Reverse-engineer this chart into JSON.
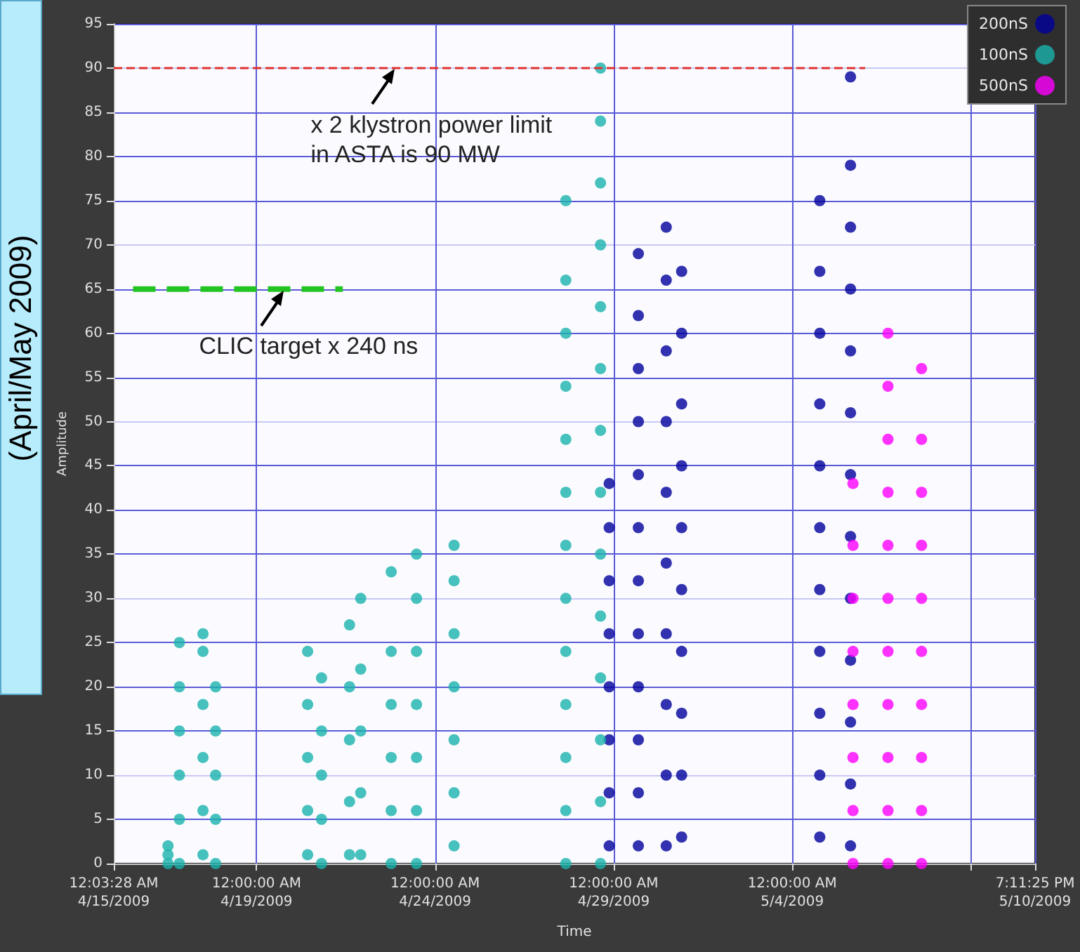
{
  "chart_data": {
    "type": "scatter",
    "xlabel": "Time",
    "ylabel": "Amplitude",
    "annotations": [
      {
        "text": "x 2 klystron power limit\nin ASTA is 90 MW",
        "x": "2009-04-22T21:00",
        "y": 90
      },
      {
        "text": "CLIC target x 240 ns",
        "x": "2009-04-19T18:00",
        "y": 65
      },
      "(April/May 2009)"
    ],
    "xlim": [
      "2009-04-15T00:03",
      "2009-05-10T19:11"
    ],
    "xticks": [
      {
        "value": "2009-04-15T00:03",
        "label": "12:03:28 AM\n4/15/2009"
      },
      {
        "value": "2009-04-19T00:00",
        "label": "12:00:00 AM\n4/19/2009"
      },
      {
        "value": "2009-04-24T00:00",
        "label": "12:00:00 AM\n4/24/2009"
      },
      {
        "value": "2009-04-29T00:00",
        "label": "12:00:00 AM\n4/29/2009"
      },
      {
        "value": "2009-05-04T00:00",
        "label": "12:00:00 AM\n5/4/2009"
      },
      {
        "value": "2009-05-09T00:00",
        "label": null
      },
      {
        "value": "2009-05-10T19:11",
        "label": "7:11:25 PM\n5/10/2009"
      }
    ],
    "ylim": [
      0,
      95
    ],
    "yticks": [
      0,
      5,
      10,
      15,
      20,
      25,
      30,
      35,
      40,
      45,
      50,
      55,
      60,
      65,
      70,
      75,
      80,
      85,
      90,
      95
    ],
    "grid": true,
    "legend": "top right",
    "marker": "circle",
    "series": [
      {
        "name": "200nS",
        "color": "#00009c",
        "x": [
          "2009-04-28T21:00",
          "2009-04-28T21:00",
          "2009-04-28T21:00",
          "2009-04-28T21:00",
          "2009-04-28T21:00",
          "2009-04-28T21:00",
          "2009-04-28T21:00",
          "2009-04-28T21:00",
          "2009-04-29T16:35",
          "2009-04-29T16:35",
          "2009-04-29T16:35",
          "2009-04-29T16:35",
          "2009-04-29T16:35",
          "2009-04-29T16:35",
          "2009-04-29T16:35",
          "2009-04-29T16:35",
          "2009-04-29T16:35",
          "2009-04-29T16:35",
          "2009-04-29T16:35",
          "2009-04-29T16:35",
          "2009-04-30T11:20",
          "2009-04-30T11:20",
          "2009-04-30T11:20",
          "2009-04-30T11:20",
          "2009-04-30T11:20",
          "2009-04-30T11:20",
          "2009-04-30T11:20",
          "2009-04-30T11:20",
          "2009-04-30T11:20",
          "2009-04-30T11:20",
          "2009-04-30T21:40",
          "2009-04-30T21:40",
          "2009-04-30T21:40",
          "2009-04-30T21:40",
          "2009-04-30T21:40",
          "2009-04-30T21:40",
          "2009-04-30T21:40",
          "2009-04-30T21:40",
          "2009-04-30T21:40",
          "2009-04-30T21:40",
          "2009-05-04T18:30",
          "2009-05-04T18:30",
          "2009-05-04T18:30",
          "2009-05-04T18:30",
          "2009-05-04T18:30",
          "2009-05-04T18:30",
          "2009-05-04T18:30",
          "2009-05-04T18:30",
          "2009-05-04T18:30",
          "2009-05-04T18:30",
          "2009-05-04T18:30",
          "2009-05-05T15:10",
          "2009-05-05T15:10",
          "2009-05-05T15:10",
          "2009-05-05T15:10",
          "2009-05-05T15:10",
          "2009-05-05T15:10",
          "2009-05-05T15:10",
          "2009-05-05T15:10",
          "2009-05-05T15:10",
          "2009-05-05T15:10",
          "2009-05-05T15:10",
          "2009-05-05T15:10",
          "2009-05-05T15:10"
        ],
        "values": [
          2,
          8,
          14,
          20,
          26,
          32,
          38,
          43,
          2,
          8,
          14,
          20,
          26,
          32,
          38,
          44,
          50,
          56,
          62,
          69,
          2,
          10,
          18,
          26,
          34,
          42,
          50,
          58,
          66,
          72,
          3,
          10,
          17,
          24,
          31,
          38,
          45,
          52,
          60,
          67,
          3,
          10,
          17,
          24,
          31,
          38,
          45,
          52,
          60,
          67,
          75,
          2,
          9,
          16,
          23,
          30,
          37,
          44,
          51,
          58,
          65,
          72,
          79,
          89
        ]
      },
      {
        "name": "100nS",
        "color": "#1ab3ad",
        "x": [
          "2009-04-16T12:30",
          "2009-04-16T12:30",
          "2009-04-16T12:30",
          "2009-04-16T20:10",
          "2009-04-16T20:10",
          "2009-04-16T20:10",
          "2009-04-16T20:10",
          "2009-04-16T20:10",
          "2009-04-16T20:10",
          "2009-04-17T12:00",
          "2009-04-17T12:00",
          "2009-04-17T12:00",
          "2009-04-17T12:00",
          "2009-04-17T12:00",
          "2009-04-17T12:00",
          "2009-04-17T20:30",
          "2009-04-17T20:30",
          "2009-04-17T20:30",
          "2009-04-17T20:30",
          "2009-04-17T20:30",
          "2009-04-20T10:20",
          "2009-04-20T10:20",
          "2009-04-20T10:20",
          "2009-04-20T10:20",
          "2009-04-20T10:20",
          "2009-04-20T19:40",
          "2009-04-20T19:40",
          "2009-04-20T19:40",
          "2009-04-20T19:40",
          "2009-04-20T19:40",
          "2009-04-21T14:30",
          "2009-04-21T14:30",
          "2009-04-21T14:30",
          "2009-04-21T14:30",
          "2009-04-21T14:30",
          "2009-04-21T22:00",
          "2009-04-21T22:00",
          "2009-04-21T22:00",
          "2009-04-21T22:00",
          "2009-04-21T22:00",
          "2009-04-22T18:30",
          "2009-04-22T18:30",
          "2009-04-22T18:30",
          "2009-04-22T18:30",
          "2009-04-22T18:30",
          "2009-04-22T18:30",
          "2009-04-23T11:30",
          "2009-04-23T11:30",
          "2009-04-23T11:30",
          "2009-04-23T11:30",
          "2009-04-23T11:30",
          "2009-04-23T11:30",
          "2009-04-23T11:30",
          "2009-04-24T12:45",
          "2009-04-24T12:45",
          "2009-04-24T12:45",
          "2009-04-24T12:45",
          "2009-04-24T12:45",
          "2009-04-24T12:45",
          "2009-04-24T12:45",
          "2009-04-27T15:50",
          "2009-04-27T15:50",
          "2009-04-27T15:50",
          "2009-04-27T15:50",
          "2009-04-27T15:50",
          "2009-04-27T15:50",
          "2009-04-27T15:50",
          "2009-04-27T15:50",
          "2009-04-27T15:50",
          "2009-04-27T15:50",
          "2009-04-27T15:50",
          "2009-04-27T15:50",
          "2009-04-27T15:50",
          "2009-04-28T15:10",
          "2009-04-28T15:10",
          "2009-04-28T15:10",
          "2009-04-28T15:10",
          "2009-04-28T15:10",
          "2009-04-28T15:10",
          "2009-04-28T15:10",
          "2009-04-28T15:10",
          "2009-04-28T15:10",
          "2009-04-28T15:10",
          "2009-04-28T15:10",
          "2009-04-28T15:10",
          "2009-04-28T15:10",
          "2009-04-28T15:10"
        ],
        "values": [
          0,
          1,
          2,
          0,
          5,
          10,
          15,
          20,
          25,
          1,
          6,
          12,
          18,
          24,
          26,
          0,
          5,
          10,
          15,
          20,
          1,
          6,
          12,
          18,
          24,
          0,
          5,
          10,
          15,
          21,
          1,
          7,
          14,
          20,
          27,
          1,
          8,
          15,
          22,
          30,
          0,
          6,
          12,
          18,
          24,
          33,
          0,
          6,
          12,
          18,
          24,
          30,
          35,
          2,
          8,
          14,
          20,
          26,
          32,
          36,
          0,
          6,
          12,
          18,
          24,
          30,
          36,
          42,
          48,
          54,
          60,
          66,
          75,
          0,
          7,
          14,
          21,
          28,
          35,
          42,
          49,
          56,
          63,
          70,
          77,
          84,
          90
        ]
      },
      {
        "name": "500nS",
        "color": "#ff00ff",
        "x": [
          "2009-05-05T16:50",
          "2009-05-05T16:50",
          "2009-05-05T16:50",
          "2009-05-05T16:50",
          "2009-05-05T16:50",
          "2009-05-05T16:50",
          "2009-05-05T16:50",
          "2009-05-05T16:50",
          "2009-05-06T16:20",
          "2009-05-06T16:20",
          "2009-05-06T16:20",
          "2009-05-06T16:20",
          "2009-05-06T16:20",
          "2009-05-06T16:20",
          "2009-05-06T16:20",
          "2009-05-06T16:20",
          "2009-05-06T16:20",
          "2009-05-06T16:20",
          "2009-05-06T16:20",
          "2009-05-07T14:55",
          "2009-05-07T14:55",
          "2009-05-07T14:55",
          "2009-05-07T14:55",
          "2009-05-07T14:55",
          "2009-05-07T14:55",
          "2009-05-07T14:55",
          "2009-05-07T14:55",
          "2009-05-07T14:55",
          "2009-05-07T14:55"
        ],
        "values": [
          0,
          6,
          12,
          18,
          24,
          30,
          36,
          43,
          0,
          6,
          12,
          18,
          24,
          30,
          36,
          42,
          48,
          54,
          60,
          0,
          6,
          12,
          18,
          24,
          30,
          36,
          42,
          48,
          56
        ]
      },
      {
        "type": "line",
        "color": "#e03030",
        "line_style": "dashed",
        "marker": "none",
        "x": [
          "2009-04-15T00:03",
          "2009-05-06T01:00"
        ],
        "values": [
          90,
          90
        ]
      },
      {
        "type": "line",
        "color": "#22c422",
        "line_style": "dashed",
        "marker": "none",
        "x": [
          "2009-04-15T13:00",
          "2009-04-21T10:00"
        ],
        "values": [
          65,
          65
        ]
      }
    ]
  }
}
